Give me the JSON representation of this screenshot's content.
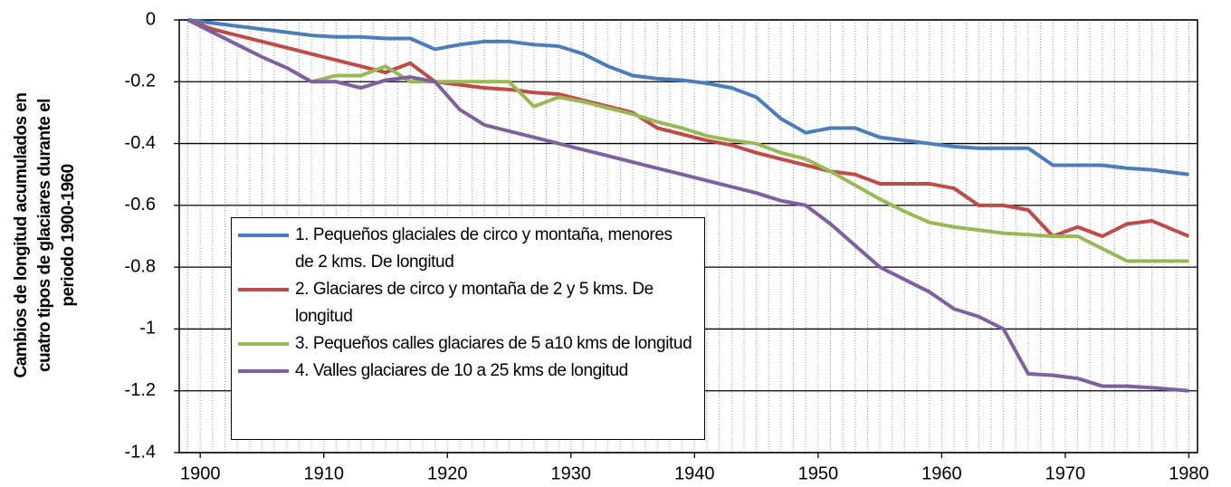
{
  "chart_data": {
    "type": "line",
    "y_label": "Cambios de longitud acumulados en cuatro tipos de glaciares durante el periodo 1900-1960",
    "x": [
      1899,
      1901,
      1903,
      1905,
      1907,
      1909,
      1911,
      1913,
      1915,
      1917,
      1919,
      1921,
      1923,
      1925,
      1927,
      1929,
      1931,
      1933,
      1935,
      1937,
      1939,
      1941,
      1943,
      1945,
      1947,
      1949,
      1951,
      1953,
      1955,
      1957,
      1959,
      1961,
      1963,
      1965,
      1967,
      1969,
      1971,
      1973,
      1975,
      1977,
      1980
    ],
    "series": [
      {
        "name": "1. Pequeños glaciales de circo y montaña, menores de 2 kms.  De longitud",
        "color": "#4a7ebb",
        "values": [
          0,
          -0.01,
          -0.02,
          -0.03,
          -0.04,
          -0.05,
          -0.055,
          -0.055,
          -0.06,
          -0.06,
          -0.095,
          -0.08,
          -0.07,
          -0.07,
          -0.08,
          -0.085,
          -0.11,
          -0.15,
          -0.18,
          -0.19,
          -0.195,
          -0.205,
          -0.22,
          -0.25,
          -0.32,
          -0.365,
          -0.35,
          -0.35,
          -0.38,
          -0.39,
          -0.4,
          -0.41,
          -0.415,
          -0.415,
          -0.415,
          -0.47,
          -0.47,
          -0.47,
          -0.48,
          -0.485,
          -0.5
        ]
      },
      {
        "name": "2. Glaciares de circo y montaña de 2 y 5 kms. De longitud",
        "color": "#be4b48",
        "values": [
          0,
          -0.03,
          -0.05,
          -0.07,
          -0.09,
          -0.11,
          -0.13,
          -0.15,
          -0.17,
          -0.14,
          -0.2,
          -0.21,
          -0.22,
          -0.225,
          -0.235,
          -0.24,
          -0.26,
          -0.28,
          -0.3,
          -0.35,
          -0.37,
          -0.39,
          -0.405,
          -0.43,
          -0.45,
          -0.47,
          -0.49,
          -0.5,
          -0.53,
          -0.53,
          -0.53,
          -0.545,
          -0.6,
          -0.6,
          -0.615,
          -0.7,
          -0.67,
          -0.7,
          -0.66,
          -0.65,
          -0.7
        ]
      },
      {
        "name": "3. Pequeños calles glaciares de 5 a10 kms de longitud",
        "color": "#98b954",
        "values": [
          null,
          null,
          null,
          null,
          null,
          -0.2,
          -0.18,
          -0.18,
          -0.15,
          -0.2,
          -0.2,
          -0.2,
          -0.2,
          -0.2,
          -0.28,
          -0.25,
          -0.265,
          -0.285,
          -0.305,
          -0.33,
          -0.35,
          -0.375,
          -0.39,
          -0.4,
          -0.43,
          -0.45,
          -0.49,
          -0.535,
          -0.58,
          -0.62,
          -0.655,
          -0.67,
          -0.68,
          -0.69,
          -0.695,
          -0.7,
          -0.7,
          -0.74,
          -0.78,
          -0.78,
          -0.78
        ]
      },
      {
        "name": "4. Valles glaciares de 10 a 25 kms de longitud",
        "color": "#7d60a0",
        "values": [
          0,
          -0.04,
          -0.08,
          -0.12,
          -0.155,
          -0.2,
          -0.2,
          -0.22,
          -0.195,
          -0.185,
          -0.2,
          -0.29,
          -0.34,
          -0.36,
          -0.38,
          -0.4,
          -0.42,
          -0.44,
          -0.46,
          -0.48,
          -0.5,
          -0.52,
          -0.54,
          -0.56,
          -0.585,
          -0.6,
          -0.66,
          -0.73,
          -0.8,
          -0.84,
          -0.88,
          -0.935,
          -0.96,
          -1,
          -1.145,
          -1.15,
          -1.16,
          -1.185,
          -1.185,
          -1.19,
          -1.2
        ]
      }
    ],
    "xlim": [
      1898.3,
      1980.7
    ],
    "xticks": [
      1900,
      1910,
      1920,
      1930,
      1940,
      1950,
      1960,
      1970,
      1980
    ],
    "ylim": [
      -1.4,
      0
    ],
    "yticks": [
      0,
      -0.2,
      -0.4,
      -0.6,
      -0.8,
      -1,
      -1.2,
      -1.4
    ],
    "grid": true,
    "minor_x_grid": true,
    "legend": "lower left"
  }
}
